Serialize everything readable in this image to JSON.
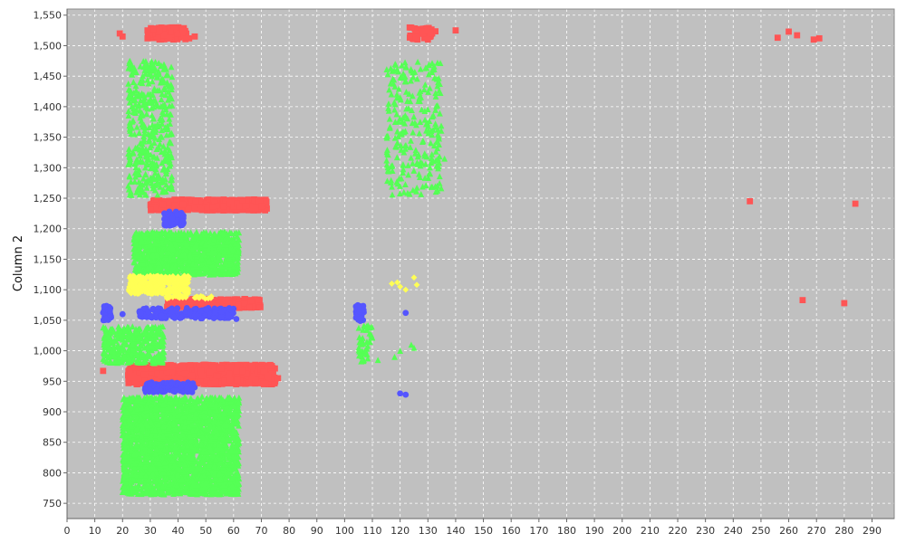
{
  "chart_data": {
    "type": "scatter",
    "title": "",
    "xlabel": "",
    "ylabel": "Column 2",
    "xlim": [
      0,
      298
    ],
    "ylim": [
      725,
      1560
    ],
    "x_ticks": [
      0,
      10,
      20,
      30,
      40,
      50,
      60,
      70,
      80,
      90,
      100,
      110,
      120,
      130,
      140,
      150,
      160,
      170,
      180,
      190,
      200,
      210,
      220,
      230,
      240,
      250,
      260,
      270,
      280,
      290
    ],
    "y_ticks": [
      750,
      800,
      850,
      900,
      950,
      1000,
      1050,
      1100,
      1150,
      1200,
      1250,
      1300,
      1350,
      1400,
      1450,
      1500,
      1550
    ],
    "grid": true,
    "legend": "none",
    "plot_background": "#c0c0c0",
    "series": [
      {
        "color": "#ff5555",
        "marker": "square",
        "clusters": [
          {
            "x": [
              29,
              43
            ],
            "y": [
              1510,
              1530
            ],
            "n": 120
          },
          {
            "x": [
              123,
              133
            ],
            "y": [
              1510,
              1530
            ],
            "n": 40
          },
          {
            "x": [
              30,
              72
            ],
            "y": [
              1230,
              1248
            ],
            "n": 600
          },
          {
            "x": [
              36,
              70
            ],
            "y": [
              1070,
              1085
            ],
            "n": 250
          },
          {
            "x": [
              22,
              75
            ],
            "y": [
              945,
              977
            ],
            "n": 900
          }
        ],
        "points": [
          [
            19,
            1520
          ],
          [
            20,
            1515
          ],
          [
            29,
            1525
          ],
          [
            29,
            1512
          ],
          [
            44,
            1512
          ],
          [
            46,
            1515
          ],
          [
            140,
            1525
          ],
          [
            130,
            1510
          ],
          [
            256,
            1513
          ],
          [
            260,
            1523
          ],
          [
            263,
            1517
          ],
          [
            269,
            1510
          ],
          [
            271,
            1512
          ],
          [
            246,
            1245
          ],
          [
            284,
            1241
          ],
          [
            265,
            1083
          ],
          [
            280,
            1078
          ],
          [
            13,
            967
          ],
          [
            76,
            955
          ]
        ]
      },
      {
        "color": "#5555ff",
        "marker": "circle",
        "clusters": [
          {
            "x": [
              35,
              42
            ],
            "y": [
              1205,
              1228
            ],
            "n": 60
          },
          {
            "x": [
              26,
              60
            ],
            "y": [
              1053,
              1070
            ],
            "n": 180
          },
          {
            "x": [
              13,
              16
            ],
            "y": [
              1050,
              1075
            ],
            "n": 40
          },
          {
            "x": [
              104,
              107
            ],
            "y": [
              1048,
              1075
            ],
            "n": 40
          },
          {
            "x": [
              28,
              46
            ],
            "y": [
              932,
              948
            ],
            "n": 150
          }
        ],
        "points": [
          [
            61,
            1052
          ],
          [
            34,
            1058
          ],
          [
            20,
            1060
          ],
          [
            122,
            1062
          ],
          [
            120,
            930
          ],
          [
            122,
            928
          ]
        ]
      },
      {
        "color": "#55ff55",
        "marker": "triangle",
        "clusters": [
          {
            "x": [
              22,
              38
            ],
            "y": [
              1255,
              1475
            ],
            "n": 400
          },
          {
            "x": [
              115,
              135
            ],
            "y": [
              1255,
              1475
            ],
            "n": 250
          },
          {
            "x": [
              24,
              62
            ],
            "y": [
              1125,
              1195
            ],
            "n": 1100
          },
          {
            "x": [
              13,
              35
            ],
            "y": [
              980,
              1040
            ],
            "n": 350
          },
          {
            "x": [
              105,
              110
            ],
            "y": [
              980,
              1045
            ],
            "n": 40
          },
          {
            "x": [
              20,
              62
            ],
            "y": [
              765,
              925
            ],
            "n": 2600
          }
        ],
        "points": [
          [
            136,
            1315
          ],
          [
            120,
            1000
          ],
          [
            124,
            1010
          ],
          [
            125,
            1005
          ],
          [
            118,
            990
          ],
          [
            112,
            985
          ]
        ]
      },
      {
        "color": "#ffff55",
        "marker": "diamond",
        "clusters": [
          {
            "x": [
              22,
              44
            ],
            "y": [
              1093,
              1123
            ],
            "n": 320
          },
          {
            "x": [
              35,
              52
            ],
            "y": [
              1085,
              1090
            ],
            "n": 30
          }
        ],
        "points": [
          [
            117,
            1110
          ],
          [
            120,
            1105
          ],
          [
            122,
            1100
          ],
          [
            125,
            1120
          ],
          [
            126,
            1108
          ],
          [
            119,
            1112
          ]
        ]
      }
    ]
  }
}
